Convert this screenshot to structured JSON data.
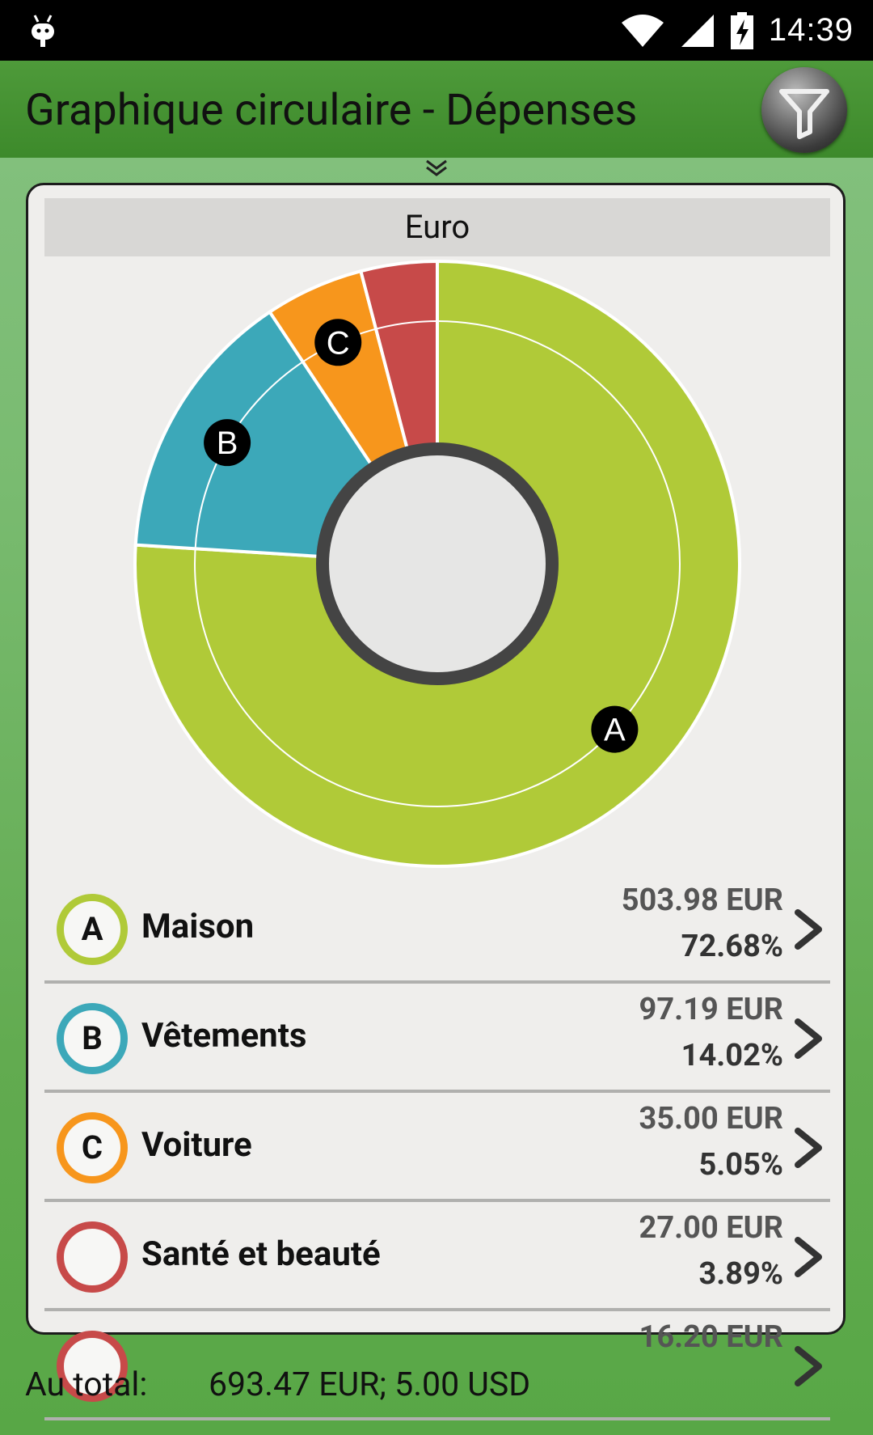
{
  "status_bar": {
    "time": "14:39",
    "icons": [
      "android-icon",
      "wifi-icon",
      "signal-icon",
      "battery-charging-icon"
    ]
  },
  "app_bar": {
    "title": "Graphique circulaire - Dépenses",
    "filter_icon": "filter-funnel-icon"
  },
  "currency_label": "Euro",
  "chart_data": {
    "type": "pie",
    "categories": [
      "Maison",
      "Vêtements",
      "Voiture",
      "Santé et beauté"
    ],
    "markers": [
      "A",
      "B",
      "C",
      ""
    ],
    "values": [
      503.98,
      97.19,
      35.0,
      27.0
    ],
    "percentages": [
      72.68,
      14.02,
      5.05,
      3.89
    ],
    "colors": [
      "#b0ca38",
      "#3ca8b9",
      "#f7961c",
      "#c74a49"
    ]
  },
  "categories": [
    {
      "marker": "A",
      "name": "Maison",
      "amount": "503.98 EUR",
      "percent": "72.68%",
      "color": "#b0ca38"
    },
    {
      "marker": "B",
      "name": "Vêtements",
      "amount": "97.19 EUR",
      "percent": "14.02%",
      "color": "#3ca8b9"
    },
    {
      "marker": "C",
      "name": "Voiture",
      "amount": "35.00 EUR",
      "percent": "5.05%",
      "color": "#f7961c"
    },
    {
      "marker": "",
      "name": "Santé et beauté",
      "amount": "27.00 EUR",
      "percent": "3.89%",
      "color": "#c74a49"
    },
    {
      "marker": "",
      "name": "",
      "amount": "16.20 EUR",
      "percent": "",
      "color": "#c74a49"
    }
  ],
  "footer": {
    "total_label": "Au total:",
    "total_value": "693.47 EUR; 5.00 USD"
  }
}
